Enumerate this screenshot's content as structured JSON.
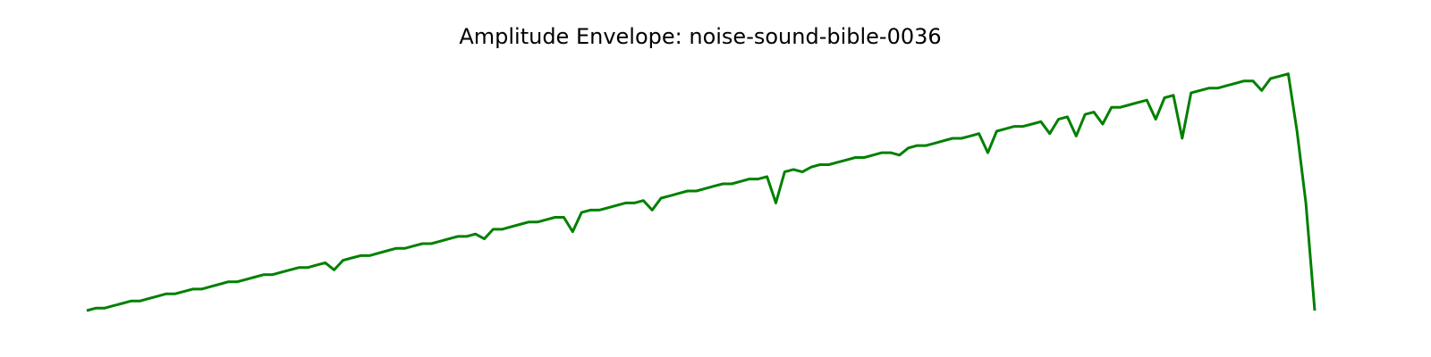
{
  "chart_data": {
    "type": "line",
    "title": "Amplitude Envelope: noise-sound-bible-0036",
    "color": "#008000",
    "ylim": [
      0,
      1
    ],
    "values": [
      0.0,
      0.01,
      0.01,
      0.02,
      0.03,
      0.04,
      0.04,
      0.05,
      0.06,
      0.07,
      0.07,
      0.08,
      0.09,
      0.09,
      0.1,
      0.11,
      0.12,
      0.12,
      0.13,
      0.14,
      0.15,
      0.15,
      0.16,
      0.17,
      0.18,
      0.18,
      0.19,
      0.2,
      0.17,
      0.21,
      0.22,
      0.23,
      0.23,
      0.24,
      0.25,
      0.26,
      0.26,
      0.27,
      0.28,
      0.28,
      0.29,
      0.3,
      0.31,
      0.31,
      0.32,
      0.3,
      0.34,
      0.34,
      0.35,
      0.36,
      0.37,
      0.37,
      0.38,
      0.39,
      0.39,
      0.33,
      0.41,
      0.42,
      0.42,
      0.43,
      0.44,
      0.45,
      0.45,
      0.46,
      0.42,
      0.47,
      0.48,
      0.49,
      0.5,
      0.5,
      0.51,
      0.52,
      0.53,
      0.53,
      0.54,
      0.55,
      0.55,
      0.56,
      0.45,
      0.58,
      0.59,
      0.58,
      0.6,
      0.61,
      0.61,
      0.62,
      0.63,
      0.64,
      0.64,
      0.65,
      0.66,
      0.66,
      0.65,
      0.68,
      0.69,
      0.69,
      0.7,
      0.71,
      0.72,
      0.72,
      0.73,
      0.74,
      0.66,
      0.75,
      0.76,
      0.77,
      0.77,
      0.78,
      0.79,
      0.74,
      0.8,
      0.81,
      0.73,
      0.82,
      0.83,
      0.78,
      0.85,
      0.85,
      0.86,
      0.87,
      0.88,
      0.8,
      0.89,
      0.9,
      0.72,
      0.91,
      0.92,
      0.93,
      0.93,
      0.94,
      0.95,
      0.96,
      0.96,
      0.92,
      0.97,
      0.98,
      0.99,
      0.75,
      0.45,
      0.0
    ]
  }
}
